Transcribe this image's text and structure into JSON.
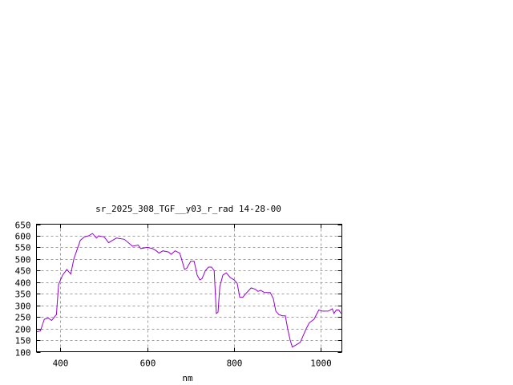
{
  "chart_data": {
    "type": "line",
    "title": "sr_2025_308_TGF__y03_r_rad 14-28-00",
    "xlabel": "nm",
    "ylabel": "",
    "xlim": [
      345,
      1048
    ],
    "ylim": [
      100,
      650
    ],
    "xticks": [
      400,
      600,
      800,
      1000
    ],
    "yticks": [
      100,
      150,
      200,
      250,
      300,
      350,
      400,
      450,
      500,
      550,
      600,
      650
    ],
    "grid": true,
    "line_color": "#9400d3",
    "series": [
      {
        "x": [
          345,
          354,
          363,
          372,
          380,
          391,
          396,
          405,
          415,
          424,
          431,
          446,
          455,
          465,
          474,
          483,
          488,
          501,
          511,
          520,
          529,
          547,
          566,
          579,
          585,
          600,
          612,
          621,
          627,
          636,
          649,
          655,
          664,
          675,
          686,
          691,
          700,
          708,
          715,
          721,
          726,
          734,
          741,
          748,
          754,
          759,
          763,
          767,
          774,
          782,
          791,
          800,
          807,
          813,
          820,
          829,
          839,
          848,
          855,
          861,
          870,
          883,
          890,
          896,
          903,
          911,
          918,
          923,
          929,
          934,
          943,
          952,
          958,
          966,
          973,
          984,
          992,
          995,
          1003,
          1017,
          1026,
          1030,
          1035,
          1041,
          1046
        ],
        "y": [
          185,
          190,
          240,
          245,
          235,
          260,
          390,
          430,
          455,
          435,
          500,
          580,
          595,
          600,
          610,
          590,
          600,
          595,
          570,
          580,
          590,
          585,
          555,
          560,
          545,
          550,
          545,
          535,
          525,
          535,
          530,
          520,
          535,
          525,
          455,
          460,
          490,
          490,
          430,
          410,
          415,
          450,
          465,
          465,
          450,
          265,
          270,
          380,
          430,
          440,
          420,
          410,
          395,
          335,
          335,
          355,
          375,
          370,
          360,
          365,
          355,
          355,
          330,
          275,
          260,
          255,
          255,
          200,
          150,
          120,
          130,
          140,
          165,
          200,
          225,
          240,
          270,
          280,
          275,
          275,
          285,
          265,
          280,
          280,
          265
        ]
      }
    ]
  }
}
